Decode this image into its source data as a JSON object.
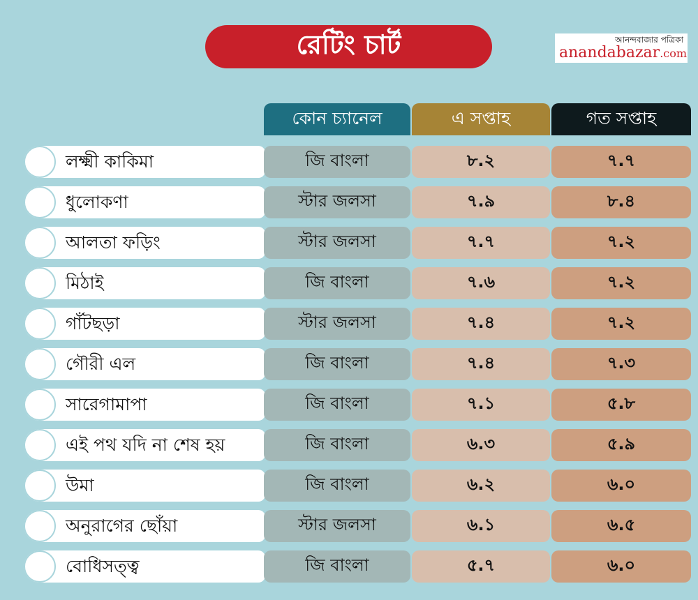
{
  "title": "রেটিং চার্ট",
  "logo": {
    "bengali": "আনন্দবাজার পত্রিকা",
    "name": "anandabazar",
    "suffix": ".com"
  },
  "colors": {
    "background": "#a9d5dc",
    "title": "#c8202a",
    "channel_header": "#1e6f81",
    "this_week_header": "#a68436",
    "last_week_header": "#0e1a1d"
  },
  "chart_data": {
    "type": "table",
    "columns": [
      "কোন চ্যানেল",
      "এ সপ্তাহ",
      "গত সপ্তাহ"
    ],
    "rows": [
      {
        "show": "লক্ষ্মী কাকিমা",
        "channel": "জি বাংলা",
        "this_week": "৮.২",
        "last_week": "৭.৭"
      },
      {
        "show": "ধুলোকণা",
        "channel": "স্টার জলসা",
        "this_week": "৭.৯",
        "last_week": "৮.৪"
      },
      {
        "show": "আলতা ফড়িং",
        "channel": "স্টার জলসা",
        "this_week": "৭.৭",
        "last_week": "৭.২"
      },
      {
        "show": "মিঠাই",
        "channel": "জি বাংলা",
        "this_week": "৭.৬",
        "last_week": "৭.২"
      },
      {
        "show": "গাঁটছড়া",
        "channel": "স্টার জলসা",
        "this_week": "৭.৪",
        "last_week": "৭.২"
      },
      {
        "show": "গৌরী এল",
        "channel": "জি বাংলা",
        "this_week": "৭.৪",
        "last_week": "৭.৩"
      },
      {
        "show": "সারেগামাপা",
        "channel": "জি বাংলা",
        "this_week": "৭.১",
        "last_week": "৫.৮"
      },
      {
        "show": "এই পথ যদি না শেষ হয়",
        "channel": "জি বাংলা",
        "this_week": "৬.৩",
        "last_week": "৫.৯"
      },
      {
        "show": "উমা",
        "channel": "জি বাংলা",
        "this_week": "৬.২",
        "last_week": "৬.০"
      },
      {
        "show": "অনুরাগের ছোঁয়া",
        "channel": "স্টার জলসা",
        "this_week": "৬.১",
        "last_week": "৬.৫"
      },
      {
        "show": "বোধিসত্ত্ব",
        "channel": "জি বাংলা",
        "this_week": "৫.৭",
        "last_week": "৬.০"
      }
    ]
  }
}
